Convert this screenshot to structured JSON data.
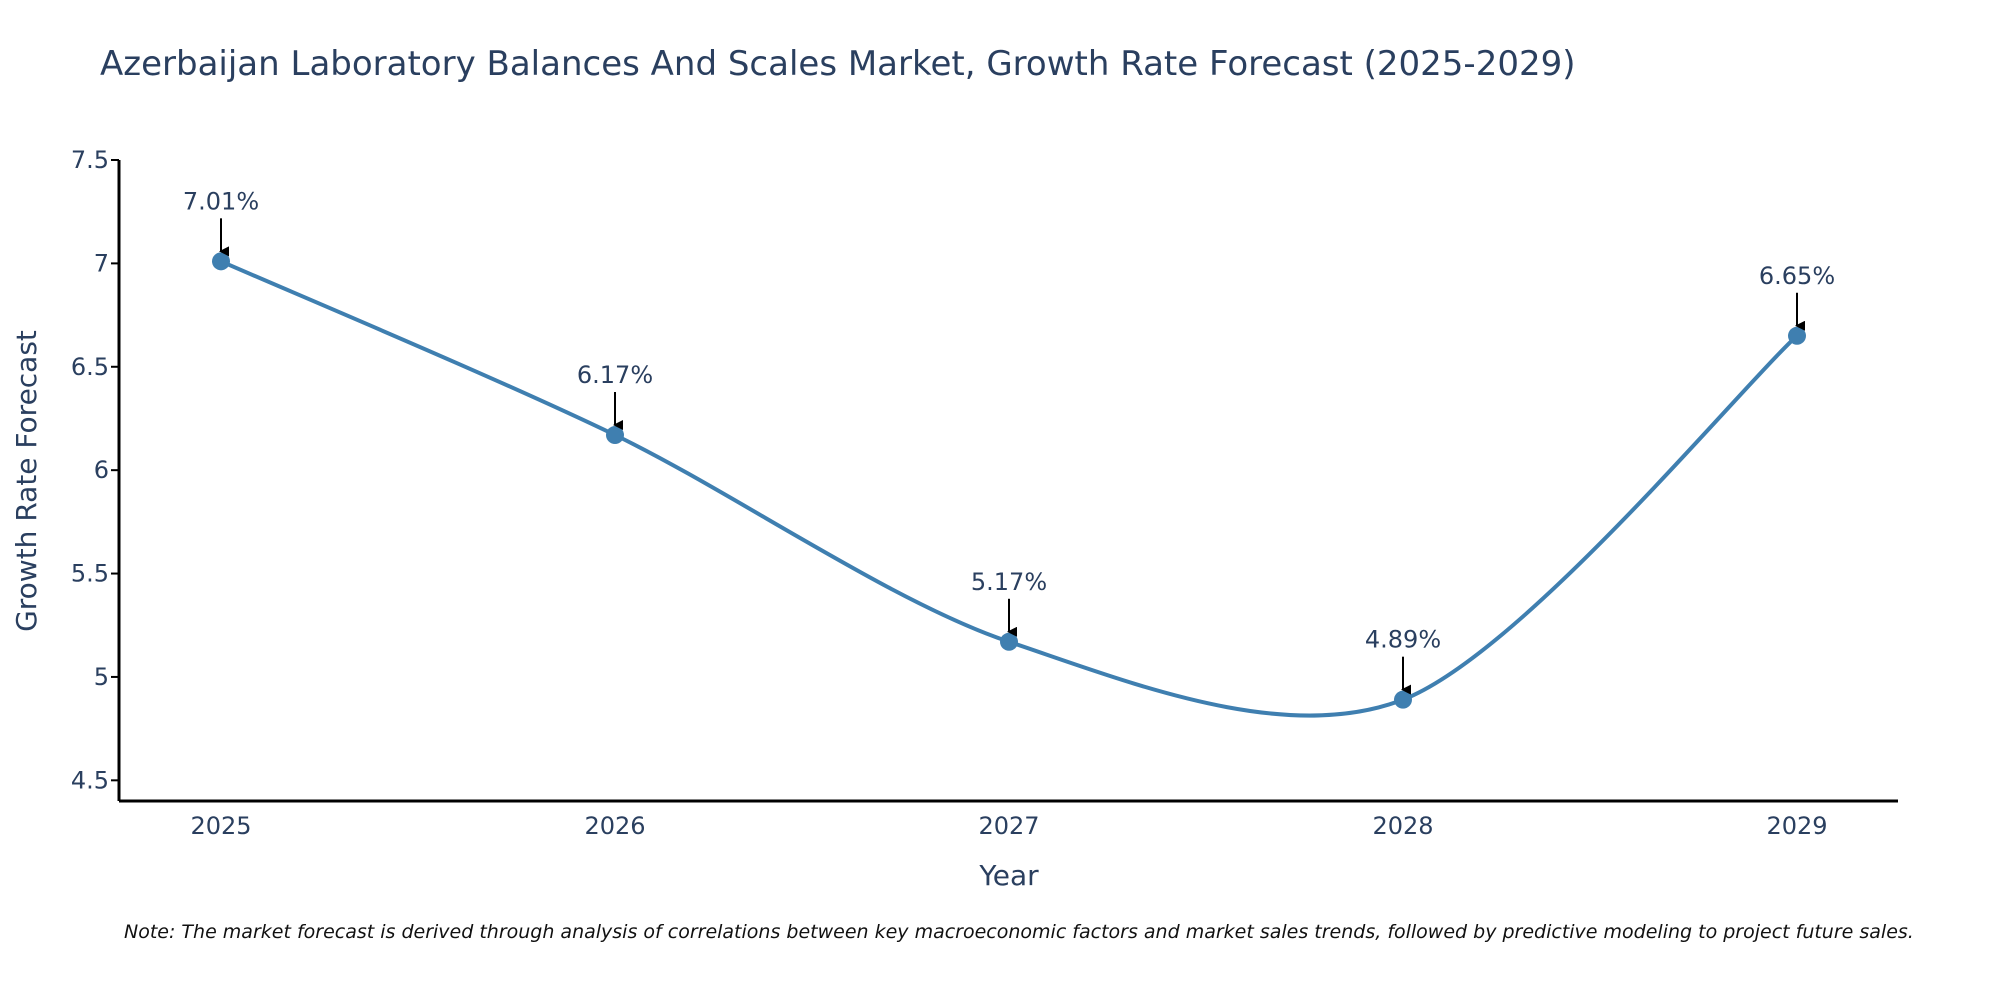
{
  "chart_data": {
    "type": "line",
    "title": "Azerbaijan Laboratory Balances And Scales Market, Growth Rate Forecast (2025-2029)",
    "xlabel": "Year",
    "ylabel": "Growth Rate Forecast",
    "categories": [
      "2025",
      "2026",
      "2027",
      "2028",
      "2029"
    ],
    "values": [
      7.01,
      6.17,
      5.17,
      4.89,
      6.65
    ],
    "data_labels": [
      "7.01%",
      "6.17%",
      "5.17%",
      "4.89%",
      "6.65%"
    ],
    "ylim": [
      4.4,
      7.5
    ],
    "yticks": [
      4.5,
      5,
      5.5,
      6,
      6.5,
      7,
      7.5
    ],
    "ytick_labels": [
      "4.5",
      "5",
      "5.5",
      "6",
      "6.5",
      "7",
      "7.5"
    ],
    "line_color": "#3f7fb0",
    "marker_color": "#3f7fb0",
    "grid": false
  },
  "note": "Note: The market forecast is derived through analysis of correlations between key macroeconomic factors and market sales trends, followed by predictive modeling to project future sales."
}
